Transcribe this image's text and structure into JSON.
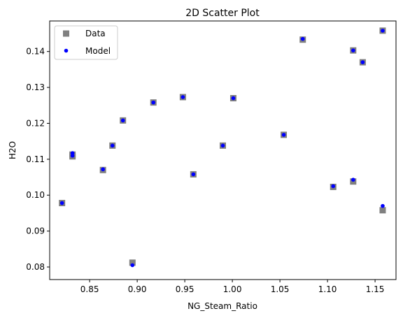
{
  "chart_data": {
    "type": "scatter",
    "title": "2D Scatter Plot",
    "xlabel": "NG_Steam_Ratio",
    "ylabel": "H2O",
    "xlim": [
      0.808,
      1.172
    ],
    "ylim": [
      0.0765,
      0.1485
    ],
    "xticks": [
      0.85,
      0.9,
      0.95,
      1.0,
      1.05,
      1.1,
      1.15
    ],
    "xtick_labels": [
      "0.85",
      "0.90",
      "0.95",
      "1.00",
      "1.05",
      "1.10",
      "1.15"
    ],
    "yticks": [
      0.08,
      0.09,
      0.1,
      0.11,
      0.12,
      0.13,
      0.14
    ],
    "ytick_labels": [
      "0.08",
      "0.09",
      "0.10",
      "0.11",
      "0.12",
      "0.13",
      "0.14"
    ],
    "grid": false,
    "legend_position": "top-left",
    "series": [
      {
        "name": "Data",
        "marker": "square",
        "color": "#808080",
        "x": [
          0.821,
          0.832,
          0.832,
          0.864,
          0.874,
          0.885,
          0.895,
          0.917,
          0.948,
          0.959,
          0.99,
          1.001,
          1.054,
          1.074,
          1.106,
          1.127,
          1.127,
          1.137,
          1.158,
          1.158
        ],
        "y": [
          0.0978,
          0.1108,
          0.1113,
          0.107,
          0.1138,
          0.1208,
          0.0812,
          0.1258,
          0.1273,
          0.1058,
          0.1138,
          0.127,
          0.1168,
          0.1433,
          0.1023,
          0.1038,
          0.1403,
          0.137,
          0.1458,
          0.0958
        ]
      },
      {
        "name": "Model",
        "marker": "circle",
        "color": "#0000ff",
        "x": [
          0.821,
          0.832,
          0.832,
          0.864,
          0.874,
          0.885,
          0.895,
          0.917,
          0.948,
          0.959,
          0.99,
          1.001,
          1.054,
          1.074,
          1.106,
          1.127,
          1.127,
          1.137,
          1.158,
          1.158
        ],
        "y": [
          0.0978,
          0.111,
          0.1117,
          0.1072,
          0.1138,
          0.1208,
          0.0805,
          0.1258,
          0.1273,
          0.1058,
          0.1138,
          0.127,
          0.1168,
          0.1435,
          0.1025,
          0.1043,
          0.1403,
          0.137,
          0.1458,
          0.097
        ]
      }
    ]
  }
}
